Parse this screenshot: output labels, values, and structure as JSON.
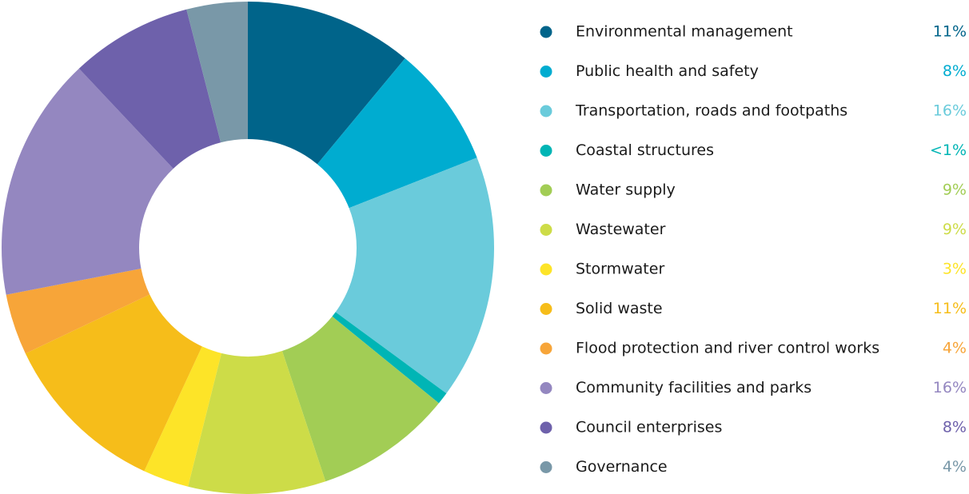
{
  "chart_data": {
    "type": "donut",
    "categories": [
      "Environmental management",
      "Public health and safety",
      "Transportation, roads and footpaths",
      "Coastal structures",
      "Water supply",
      "Wastewater",
      "Stormwater",
      "Solid waste",
      "Flood protection and river control works",
      "Community facilities and parks",
      "Council enterprises",
      "Governance"
    ],
    "values": [
      11,
      8,
      16,
      0.8,
      9,
      9,
      3,
      11,
      4,
      16,
      8,
      4
    ],
    "value_labels": [
      "11%",
      "8%",
      "16%",
      "<1%",
      "9%",
      "9%",
      "3%",
      "11%",
      "4%",
      "16%",
      "8%",
      "4%"
    ],
    "colors": [
      "#00648a",
      "#00acd0",
      "#6acbdb",
      "#00b5b5",
      "#a2cd55",
      "#cddc48",
      "#fde428",
      "#f6bd1a",
      "#f7a539",
      "#9487c0",
      "#6e61ab",
      "#7998a8"
    ],
    "legend": "right"
  }
}
